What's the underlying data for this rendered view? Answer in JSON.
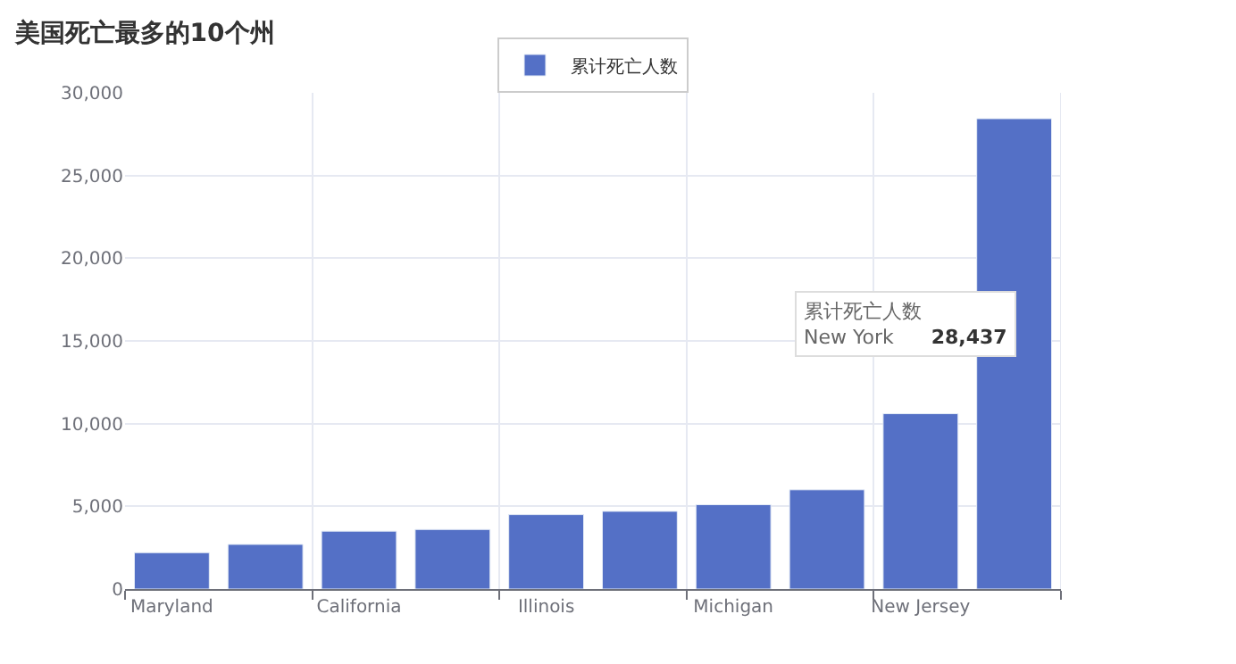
{
  "chart_data": {
    "type": "bar",
    "title": "美国死亡最多的10个州",
    "categories": [
      "Maryland",
      null,
      "California",
      null,
      "Illinois",
      null,
      "Michigan",
      null,
      "New Jersey",
      null
    ],
    "series": [
      {
        "name": "累计死亡人数",
        "color": "#5470c6",
        "values": [
          2200,
          2700,
          3500,
          3600,
          4500,
          4700,
          5100,
          6000,
          10600,
          28437
        ]
      }
    ],
    "ylim": [
      0,
      30000
    ],
    "yticks": [
      {
        "value": 0,
        "label": "0"
      },
      {
        "value": 5000,
        "label": "5,000"
      },
      {
        "value": 10000,
        "label": "10,000"
      },
      {
        "value": 15000,
        "label": "15,000"
      },
      {
        "value": 20000,
        "label": "20,000"
      },
      {
        "value": 25000,
        "label": "25,000"
      },
      {
        "value": 30000,
        "label": "30,000"
      }
    ],
    "grid": true,
    "legend": "top",
    "annotations": [
      "累计死亡人数",
      "New York",
      "28,437"
    ]
  }
}
